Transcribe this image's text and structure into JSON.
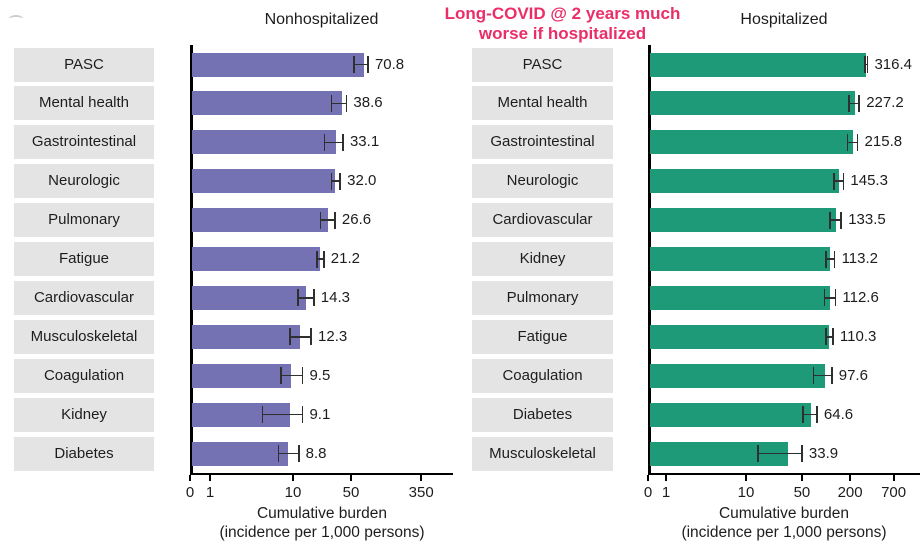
{
  "annotation": {
    "text_line1": "Long-COVID @ 2 years much",
    "text_line2": "worse if hospitalized",
    "color": "#ea2e68"
  },
  "colors": {
    "nonhospitalized_bar": "#7472b2",
    "hospitalized_bar": "#1e9a78",
    "label_box_bg": "#e4e4e4",
    "axis": "#000000",
    "error_bar": "#2f2f2f",
    "text": "#1d1d1d",
    "annotation_pink": "#ea2e68"
  },
  "chart_data": [
    {
      "type": "bar",
      "orientation": "horizontal",
      "title": "Nonhospitalized",
      "bar_color": "#7472b2",
      "xscale": "log (axis shows 0, then log scale from 1)",
      "xticks": [
        0,
        1,
        10,
        50,
        350
      ],
      "xlabel_line1": "Cumulative burden",
      "xlabel_line2": "(incidence per 1,000 persons)",
      "grid": false,
      "categories": [
        "PASC",
        "Mental health",
        "Gastrointestinal",
        "Neurologic",
        "Pulmonary",
        "Fatigue",
        "Cardiovascular",
        "Musculoskeletal",
        "Coagulation",
        "Kidney",
        "Diabetes"
      ],
      "values": [
        70.8,
        38.6,
        33.1,
        32.0,
        26.6,
        21.2,
        14.3,
        12.3,
        9.5,
        9.1,
        8.8
      ],
      "value_labels": [
        "70.8",
        "38.6",
        "33.1",
        "32.0",
        "26.6",
        "21.2",
        "14.3",
        "12.3",
        "9.5",
        "9.1",
        "8.8"
      ],
      "ci_low_est": [
        54,
        29,
        24,
        29,
        21.5,
        19.3,
        11.5,
        9.2,
        7.2,
        4.3,
        6.7
      ],
      "ci_high_est": [
        80,
        44,
        40,
        37,
        32,
        23.5,
        17.8,
        16.5,
        13,
        13,
        11.7
      ]
    },
    {
      "type": "bar",
      "orientation": "horizontal",
      "title": "Hospitalized",
      "bar_color": "#1e9a78",
      "xscale": "log (axis shows 0, then log scale from 1)",
      "xticks": [
        0,
        1,
        10,
        50,
        200,
        700
      ],
      "xlabel_line1": "Cumulative burden",
      "xlabel_line2": "(incidence per 1,000 persons)",
      "grid": false,
      "categories": [
        "PASC",
        "Mental health",
        "Gastrointestinal",
        "Neurologic",
        "Cardiovascular",
        "Kidney",
        "Pulmonary",
        "Fatigue",
        "Coagulation",
        "Diabetes",
        "Musculoskeletal"
      ],
      "values": [
        316.4,
        227.2,
        215.8,
        145.3,
        133.5,
        113.2,
        112.6,
        110.3,
        97.6,
        64.6,
        33.9
      ],
      "value_labels": [
        "316.4",
        "227.2",
        "215.8",
        "145.3",
        "133.5",
        "113.2",
        "112.6",
        "110.3",
        "97.6",
        "64.6",
        "33.9"
      ],
      "ci_low_est": [
        305,
        195,
        185,
        125,
        113,
        99,
        96,
        99,
        70,
        52,
        14
      ],
      "ci_high_est": [
        330,
        260,
        248,
        165,
        155,
        128,
        131,
        122,
        118,
        77,
        50
      ]
    }
  ]
}
